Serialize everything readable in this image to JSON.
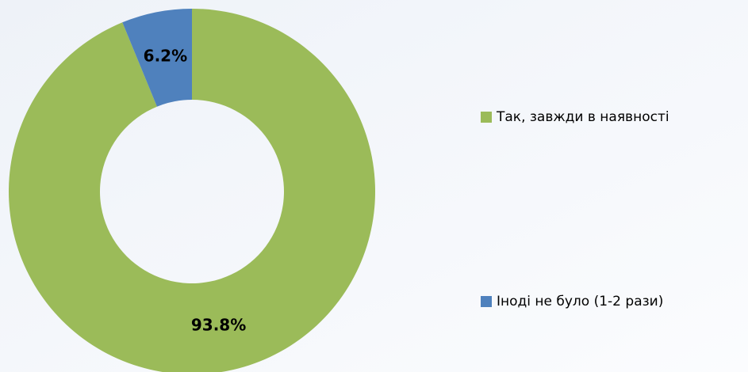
{
  "chart_data": {
    "type": "donut",
    "categories": [
      "Так, завжди в наявності",
      "Іноді не було (1-2 рази)"
    ],
    "values": [
      93.8,
      6.2
    ],
    "value_labels": [
      "93.8%",
      "6.2%"
    ],
    "colors": [
      "#9bbb59",
      "#4f81bd"
    ],
    "legend": "right"
  }
}
